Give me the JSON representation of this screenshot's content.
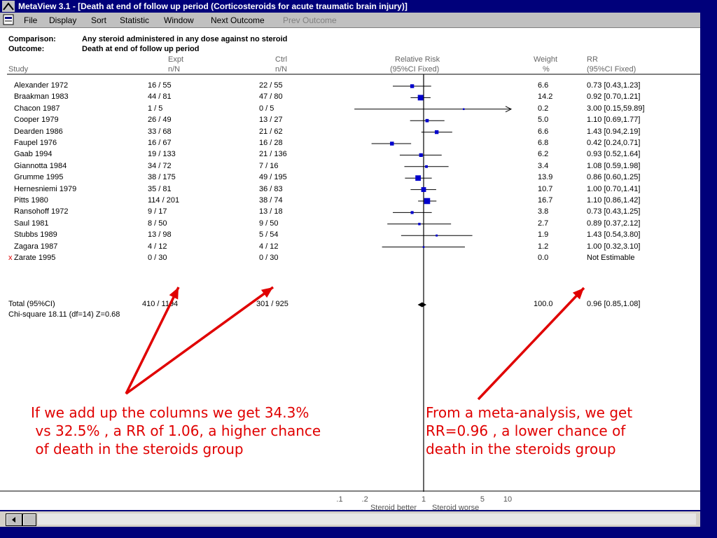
{
  "window": {
    "title": "MetaView 3.1 - [Death at end of follow up period (Corticosteroids for acute traumatic brain injury)]"
  },
  "menu": {
    "file": "File",
    "display": "Display",
    "sort": "Sort",
    "statistic": "Statistic",
    "window": "Window",
    "next_outcome": "Next Outcome",
    "prev_outcome": "Prev Outcome"
  },
  "header": {
    "comparison_label": "Comparison:",
    "comparison_value": "Any steroid administered in any dose against no steroid",
    "outcome_label": "Outcome:",
    "outcome_value": "Death at end of follow up period",
    "expt": "Expt",
    "expt_sub": "n/N",
    "ctrl": "Ctrl",
    "ctrl_sub": "n/N",
    "rr_title": "Relative Risk",
    "rr_sub": "(95%CI Fixed)",
    "weight": "Weight",
    "weight_sub": "%",
    "rr_col": "RR",
    "rr_col_sub": "(95%CI Fixed)",
    "study": "Study"
  },
  "colors": {
    "marker": "#0000cc",
    "annotation": "#e00000",
    "titlebar": "#00007a",
    "excluded_mark": "#e00000"
  },
  "chart_data": {
    "type": "forest",
    "x_scale": "log",
    "xlim": [
      0.1,
      10
    ],
    "reference_line": 1,
    "xticks": [
      ".1",
      ".2",
      "1",
      "5",
      "10"
    ],
    "xtick_values": [
      0.1,
      0.2,
      1,
      5,
      10
    ],
    "x_label_left": "Steroid better",
    "x_label_right": "Steroid worse",
    "studies": [
      {
        "name": "Alexander 1972",
        "expt": "16  / 55",
        "ctrl": "22  / 55",
        "weight": "6.6",
        "rr_text": "0.73 [0.43,1.23]",
        "rr": 0.73,
        "lo": 0.43,
        "hi": 1.23,
        "w": 6.6
      },
      {
        "name": "Braakman 1983",
        "expt": "44  / 81",
        "ctrl": "47  / 80",
        "weight": "14.2",
        "rr_text": "0.92 [0.70,1.21]",
        "rr": 0.92,
        "lo": 0.7,
        "hi": 1.21,
        "w": 14.2
      },
      {
        "name": "Chacon 1987",
        "expt": "1  / 5",
        "ctrl": "0  / 5",
        "weight": "0.2",
        "rr_text": "3.00 [0.15,59.89]",
        "rr": 3.0,
        "lo": 0.15,
        "hi": 59.89,
        "w": 0.2
      },
      {
        "name": "Cooper 1979",
        "expt": "26  / 49",
        "ctrl": "13  / 27",
        "weight": "5.0",
        "rr_text": "1.10 [0.69,1.77]",
        "rr": 1.1,
        "lo": 0.69,
        "hi": 1.77,
        "w": 5.0
      },
      {
        "name": "Dearden 1986",
        "expt": "33  / 68",
        "ctrl": "21  / 62",
        "weight": "6.6",
        "rr_text": "1.43 [0.94,2.19]",
        "rr": 1.43,
        "lo": 0.94,
        "hi": 2.19,
        "w": 6.6
      },
      {
        "name": "Faupel 1976",
        "expt": "16  / 67",
        "ctrl": "16  / 28",
        "weight": "6.8",
        "rr_text": "0.42 [0.24,0.71]",
        "rr": 0.42,
        "lo": 0.24,
        "hi": 0.71,
        "w": 6.8
      },
      {
        "name": "Gaab 1994",
        "expt": "19  / 133",
        "ctrl": "21  / 136",
        "weight": "6.2",
        "rr_text": "0.93 [0.52,1.64]",
        "rr": 0.93,
        "lo": 0.52,
        "hi": 1.64,
        "w": 6.2
      },
      {
        "name": "Giannotta 1984",
        "expt": "34  / 72",
        "ctrl": "7  / 16",
        "weight": "3.4",
        "rr_text": "1.08 [0.59,1.98]",
        "rr": 1.08,
        "lo": 0.59,
        "hi": 1.98,
        "w": 3.4
      },
      {
        "name": "Grumme 1995",
        "expt": "38  / 175",
        "ctrl": "49  / 195",
        "weight": "13.9",
        "rr_text": "0.86 [0.60,1.25]",
        "rr": 0.86,
        "lo": 0.6,
        "hi": 1.25,
        "w": 13.9
      },
      {
        "name": "Hernesniemi 1979",
        "expt": "35  / 81",
        "ctrl": "36  / 83",
        "weight": "10.7",
        "rr_text": "1.00 [0.70,1.41]",
        "rr": 1.0,
        "lo": 0.7,
        "hi": 1.41,
        "w": 10.7
      },
      {
        "name": "Pitts 1980",
        "expt": "114  / 201",
        "ctrl": "38  / 74",
        "weight": "16.7",
        "rr_text": "1.10 [0.86,1.42]",
        "rr": 1.1,
        "lo": 0.86,
        "hi": 1.42,
        "w": 16.7
      },
      {
        "name": "Ransohoff 1972",
        "expt": "9  / 17",
        "ctrl": "13  / 18",
        "weight": "3.8",
        "rr_text": "0.73 [0.43,1.25]",
        "rr": 0.73,
        "lo": 0.43,
        "hi": 1.25,
        "w": 3.8
      },
      {
        "name": "Saul 1981",
        "expt": "8  / 50",
        "ctrl": "9  / 50",
        "weight": "2.7",
        "rr_text": "0.89 [0.37,2.12]",
        "rr": 0.89,
        "lo": 0.37,
        "hi": 2.12,
        "w": 2.7
      },
      {
        "name": "Stubbs 1989",
        "expt": "13  / 98",
        "ctrl": "5  / 54",
        "weight": "1.9",
        "rr_text": "1.43 [0.54,3.80]",
        "rr": 1.43,
        "lo": 0.54,
        "hi": 3.8,
        "w": 1.9
      },
      {
        "name": "Zagara 1987",
        "expt": "4  / 12",
        "ctrl": "4  / 12",
        "weight": "1.2",
        "rr_text": "1.00 [0.32,3.10]",
        "rr": 1.0,
        "lo": 0.32,
        "hi": 3.1,
        "w": 1.2
      },
      {
        "name": "Zarate 1995",
        "expt": "0  / 30",
        "ctrl": "0  / 30",
        "weight": "0.0",
        "rr_text": "Not Estimable",
        "excluded": true,
        "mark": "x"
      }
    ],
    "total": {
      "name": "Total (95%CI)",
      "expt": "410  / 1194",
      "ctrl": "301  / 925",
      "weight": "100.0",
      "rr_text": "0.96 [0.85,1.08]",
      "rr": 0.96,
      "lo": 0.85,
      "hi": 1.08
    },
    "heterogeneity": "Chi-square 18.11 (df=14)  Z=0.68"
  },
  "annotations": {
    "left": "If we add up the columns we get 34.3%\n vs 32.5% , a RR of 1.06, a higher chance\n of death in the steroids group",
    "right": "From a meta-analysis, we get\nRR=0.96 , a lower chance of\ndeath in the steroids group"
  }
}
